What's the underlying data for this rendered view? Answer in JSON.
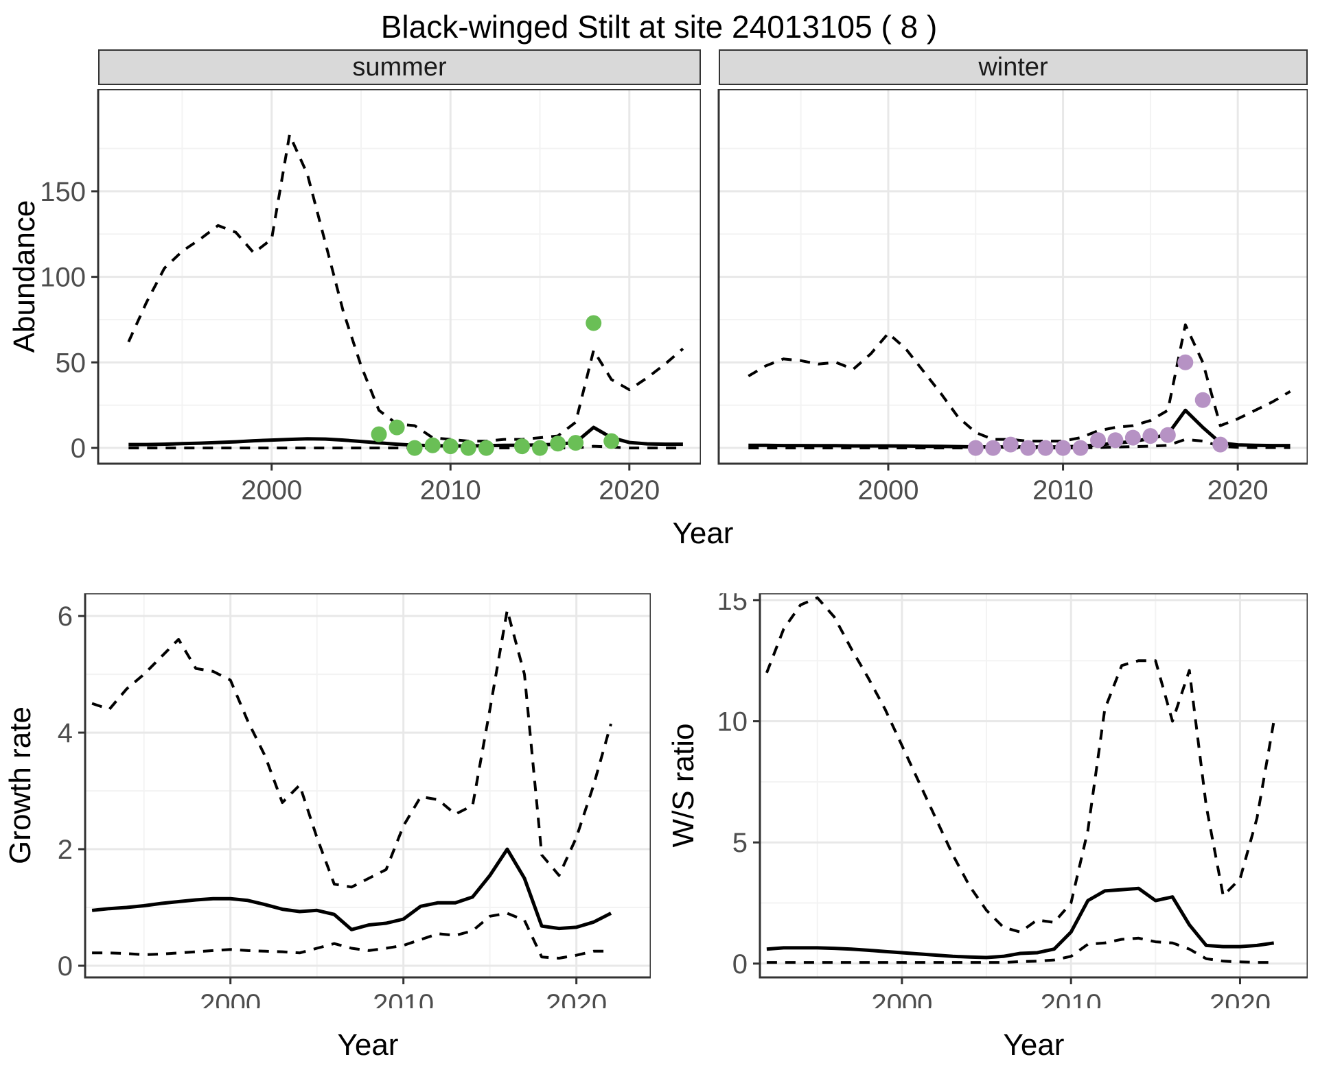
{
  "title": "Black-winged Stilt at site 24013105 ( 8 )",
  "colors": {
    "line": "#000000",
    "grid_major": "#e8e8e8",
    "grid_minor": "#f3f3f3",
    "panel_border": "#333333",
    "strip_bg": "#d9d9d9",
    "axis_text": "#4d4d4d",
    "summer_points": "#6abf56",
    "winter_points": "#b692c4"
  },
  "labels": {
    "x": "Year",
    "y_abundance": "Abundance",
    "y_growth": "Growth rate",
    "y_ws": "W/S ratio"
  },
  "facets": [
    {
      "label": "summer"
    },
    {
      "label": "winter"
    }
  ],
  "chart_data": [
    {
      "id": "abundance-summer",
      "type": "line",
      "facet": "summer",
      "xlabel": "Year",
      "ylabel": "Abundance",
      "xlim": [
        1990.3,
        2024.0
      ],
      "ylim": [
        -9.2,
        209.7
      ],
      "xticks": [
        2000,
        2010,
        2020
      ],
      "yticks": [
        0,
        50,
        100,
        150
      ],
      "xticks_minor": [
        1995,
        2005,
        2015
      ],
      "yticks_minor": [
        25,
        75,
        125,
        175
      ],
      "series": [
        {
          "name": "upper-ci",
          "style": "dashed",
          "x": [
            1992,
            1993,
            1994,
            1995,
            1996,
            1997,
            1998,
            1999,
            2000,
            2001,
            2002,
            2003,
            2004,
            2005,
            2006,
            2007,
            2008,
            2009,
            2010,
            2011,
            2012,
            2013,
            2014,
            2015,
            2016,
            2017,
            2018,
            2019,
            2020,
            2021,
            2022,
            2023
          ],
          "y": [
            62,
            85,
            105,
            115,
            122,
            130,
            126,
            114,
            122,
            183,
            160,
            120,
            80,
            48,
            22,
            14,
            13,
            6,
            5,
            4,
            4,
            5,
            5,
            6,
            7,
            15,
            57,
            40,
            34,
            41,
            49,
            58
          ]
        },
        {
          "name": "median",
          "style": "solid",
          "x": [
            1992,
            1993,
            1994,
            1995,
            1996,
            1997,
            1998,
            1999,
            2000,
            2001,
            2002,
            2003,
            2004,
            2005,
            2006,
            2007,
            2008,
            2009,
            2010,
            2011,
            2012,
            2013,
            2014,
            2015,
            2016,
            2017,
            2018,
            2019,
            2020,
            2021,
            2022,
            2023
          ],
          "y": [
            2,
            2,
            2.2,
            2.5,
            2.8,
            3.2,
            3.6,
            4.2,
            4.6,
            5,
            5.3,
            5.2,
            4.6,
            3.8,
            3,
            2.2,
            1.6,
            1.3,
            1.2,
            1.2,
            1.3,
            1.5,
            1.6,
            1.8,
            2.2,
            3.2,
            12,
            6,
            3.2,
            2.4,
            2.2,
            2.2
          ]
        },
        {
          "name": "lower-ci",
          "style": "dashed",
          "x": [
            1992,
            1993,
            1994,
            1995,
            1996,
            1997,
            1998,
            1999,
            2000,
            2001,
            2002,
            2003,
            2004,
            2005,
            2006,
            2007,
            2008,
            2009,
            2010,
            2011,
            2012,
            2013,
            2014,
            2015,
            2016,
            2017,
            2018,
            2019,
            2020,
            2021,
            2022,
            2023
          ],
          "y": [
            0,
            0,
            0,
            0,
            0,
            0,
            0,
            0,
            0,
            0,
            0,
            0,
            0,
            0,
            0,
            0,
            0,
            0,
            0,
            0,
            0,
            0,
            0,
            0,
            0,
            0,
            1,
            0.5,
            0,
            0,
            0,
            0
          ]
        }
      ],
      "points": {
        "name": "observed",
        "color_key": "summer_points",
        "x": [
          2006,
          2007,
          2008,
          2009,
          2010,
          2011,
          2012,
          2014,
          2015,
          2016,
          2017,
          2018,
          2019
        ],
        "y": [
          8,
          12,
          0,
          1.5,
          1,
          0,
          0,
          1,
          0,
          2.5,
          3,
          73,
          4
        ]
      }
    },
    {
      "id": "abundance-winter",
      "type": "line",
      "facet": "winter",
      "xlabel": "Year",
      "ylabel": "Abundance",
      "xlim": [
        1990.3,
        2024.0
      ],
      "ylim": [
        -9.2,
        209.7
      ],
      "xticks": [
        2000,
        2010,
        2020
      ],
      "yticks": [
        0,
        50,
        100,
        150
      ],
      "xticks_minor": [
        1995,
        2005,
        2015
      ],
      "yticks_minor": [
        25,
        75,
        125,
        175
      ],
      "series": [
        {
          "name": "upper-ci",
          "style": "dashed",
          "x": [
            1992,
            1993,
            1994,
            1995,
            1996,
            1997,
            1998,
            1999,
            2000,
            2001,
            2002,
            2003,
            2004,
            2005,
            2006,
            2007,
            2008,
            2009,
            2010,
            2011,
            2012,
            2013,
            2014,
            2015,
            2016,
            2017,
            2018,
            2019,
            2020,
            2021,
            2022,
            2023
          ],
          "y": [
            42,
            48,
            52,
            51,
            49,
            50,
            46,
            55,
            67,
            58,
            45,
            32,
            18,
            9,
            5,
            5,
            4,
            4,
            4,
            6,
            10,
            12,
            13,
            16,
            22,
            72,
            50,
            13,
            17,
            22,
            27,
            33
          ]
        },
        {
          "name": "median",
          "style": "solid",
          "x": [
            1992,
            1993,
            1994,
            1995,
            1996,
            1997,
            1998,
            1999,
            2000,
            2001,
            2002,
            2003,
            2004,
            2005,
            2006,
            2007,
            2008,
            2009,
            2010,
            2011,
            2012,
            2013,
            2014,
            2015,
            2016,
            2017,
            2018,
            2019,
            2020,
            2021,
            2022,
            2023
          ],
          "y": [
            1.5,
            1.5,
            1.4,
            1.4,
            1.3,
            1.3,
            1.2,
            1.2,
            1.2,
            1.1,
            1,
            0.9,
            0.8,
            0.6,
            0.6,
            0.6,
            0.6,
            0.6,
            0.6,
            1,
            1.8,
            2.8,
            3.8,
            5.5,
            8,
            22,
            12,
            3,
            1.8,
            1.5,
            1.4,
            1.4
          ]
        },
        {
          "name": "lower-ci",
          "style": "dashed",
          "x": [
            1992,
            1993,
            1994,
            1995,
            1996,
            1997,
            1998,
            1999,
            2000,
            2001,
            2002,
            2003,
            2004,
            2005,
            2006,
            2007,
            2008,
            2009,
            2010,
            2011,
            2012,
            2013,
            2014,
            2015,
            2016,
            2017,
            2018,
            2019,
            2020,
            2021,
            2022,
            2023
          ],
          "y": [
            0,
            0,
            0,
            0,
            0,
            0,
            0,
            0,
            0,
            0,
            0,
            0,
            0,
            0,
            0,
            0,
            0,
            0,
            0,
            0,
            0.2,
            0.5,
            0.8,
            1,
            1.5,
            5,
            4,
            1,
            0.3,
            0.2,
            0.2,
            0.2
          ]
        }
      ],
      "points": {
        "name": "observed",
        "color_key": "winter_points",
        "x": [
          2005,
          2006,
          2007,
          2008,
          2009,
          2010,
          2011,
          2012,
          2013,
          2014,
          2015,
          2016,
          2017,
          2018,
          2019
        ],
        "y": [
          0,
          0,
          2,
          0,
          0,
          0,
          0,
          4.5,
          4.5,
          6,
          7,
          7.5,
          50,
          28,
          2
        ]
      }
    },
    {
      "id": "growth-rate",
      "type": "line",
      "title": "",
      "xlabel": "Year",
      "ylabel": "Growth rate",
      "xlim": [
        1991.6,
        2024.3
      ],
      "ylim": [
        -0.2,
        6.39
      ],
      "xticks": [
        2000,
        2010,
        2020
      ],
      "yticks": [
        0,
        2,
        4,
        6
      ],
      "xticks_minor": [
        1995,
        2005,
        2015
      ],
      "yticks_minor": [
        1,
        3,
        5
      ],
      "series": [
        {
          "name": "upper-ci",
          "style": "dashed",
          "x": [
            1992,
            1993,
            1994,
            1995,
            1996,
            1997,
            1998,
            1999,
            2000,
            2001,
            2002,
            2003,
            2004,
            2005,
            2006,
            2007,
            2008,
            2009,
            2010,
            2011,
            2012,
            2013,
            2014,
            2015,
            2016,
            2017,
            2018,
            2019,
            2020,
            2021,
            2022
          ],
          "y": [
            4.5,
            4.4,
            4.75,
            5.0,
            5.3,
            5.6,
            5.1,
            5.05,
            4.9,
            4.2,
            3.6,
            2.8,
            3.1,
            2.2,
            1.4,
            1.35,
            1.5,
            1.65,
            2.4,
            2.9,
            2.85,
            2.6,
            2.75,
            4.4,
            6.1,
            5.0,
            1.9,
            1.55,
            2.2,
            3.1,
            4.15
          ]
        },
        {
          "name": "median",
          "style": "solid",
          "x": [
            1992,
            1993,
            1994,
            1995,
            1996,
            1997,
            1998,
            1999,
            2000,
            2001,
            2002,
            2003,
            2004,
            2005,
            2006,
            2007,
            2008,
            2009,
            2010,
            2011,
            2012,
            2013,
            2014,
            2015,
            2016,
            2017,
            2018,
            2019,
            2020,
            2021,
            2022
          ],
          "y": [
            0.95,
            0.98,
            1.0,
            1.03,
            1.07,
            1.1,
            1.13,
            1.15,
            1.15,
            1.12,
            1.05,
            0.97,
            0.93,
            0.95,
            0.88,
            0.62,
            0.7,
            0.73,
            0.8,
            1.02,
            1.08,
            1.08,
            1.18,
            1.55,
            2.0,
            1.5,
            0.68,
            0.64,
            0.66,
            0.75,
            0.9
          ]
        },
        {
          "name": "lower-ci",
          "style": "dashed",
          "x": [
            1992,
            1993,
            1994,
            1995,
            1996,
            1997,
            1998,
            1999,
            2000,
            2001,
            2002,
            2003,
            2004,
            2005,
            2006,
            2007,
            2008,
            2009,
            2010,
            2011,
            2012,
            2013,
            2014,
            2015,
            2016,
            2017,
            2018,
            2019,
            2020,
            2021,
            2022
          ],
          "y": [
            0.22,
            0.22,
            0.21,
            0.19,
            0.2,
            0.22,
            0.24,
            0.26,
            0.28,
            0.26,
            0.25,
            0.24,
            0.22,
            0.3,
            0.38,
            0.3,
            0.26,
            0.3,
            0.35,
            0.45,
            0.55,
            0.52,
            0.6,
            0.85,
            0.9,
            0.78,
            0.15,
            0.13,
            0.18,
            0.25,
            0.25
          ]
        }
      ]
    },
    {
      "id": "ws-ratio",
      "type": "line",
      "title": "",
      "xlabel": "Year",
      "ylabel": "W/S ratio",
      "xlim": [
        1991.6,
        2024.0
      ],
      "ylim": [
        -0.57,
        15.28
      ],
      "xticks": [
        2000,
        2010,
        2020
      ],
      "yticks": [
        0,
        5,
        10,
        15
      ],
      "xticks_minor": [
        1995,
        2005,
        2015
      ],
      "yticks_minor": [
        2.5,
        7.5,
        12.5
      ],
      "series": [
        {
          "name": "upper-ci",
          "style": "dashed",
          "x": [
            1992,
            1993,
            1994,
            1995,
            1996,
            1997,
            1998,
            1999,
            2000,
            2001,
            2002,
            2003,
            2004,
            2005,
            2006,
            2007,
            2008,
            2009,
            2010,
            2011,
            2012,
            2013,
            2014,
            2015,
            2016,
            2017,
            2018,
            2019,
            2020,
            2021,
            2022
          ],
          "y": [
            12.0,
            13.8,
            14.8,
            15.1,
            14.3,
            13.0,
            11.8,
            10.5,
            9.0,
            7.5,
            6.0,
            4.5,
            3.2,
            2.2,
            1.5,
            1.3,
            1.8,
            1.7,
            2.5,
            5.5,
            10.5,
            12.3,
            12.5,
            12.5,
            10.0,
            12.1,
            6.5,
            2.8,
            3.5,
            6.0,
            10.0
          ]
        },
        {
          "name": "median",
          "style": "solid",
          "x": [
            1992,
            1993,
            1994,
            1995,
            1996,
            1997,
            1998,
            1999,
            2000,
            2001,
            2002,
            2003,
            2004,
            2005,
            2006,
            2007,
            2008,
            2009,
            2010,
            2011,
            2012,
            2013,
            2014,
            2015,
            2016,
            2017,
            2018,
            2019,
            2020,
            2021,
            2022
          ],
          "y": [
            0.6,
            0.65,
            0.65,
            0.65,
            0.63,
            0.6,
            0.55,
            0.5,
            0.45,
            0.4,
            0.35,
            0.3,
            0.27,
            0.25,
            0.3,
            0.42,
            0.45,
            0.6,
            1.3,
            2.6,
            3.0,
            3.05,
            3.1,
            2.6,
            2.75,
            1.6,
            0.75,
            0.7,
            0.7,
            0.75,
            0.85
          ]
        },
        {
          "name": "lower-ci",
          "style": "dashed",
          "x": [
            1992,
            1993,
            1994,
            1995,
            1996,
            1997,
            1998,
            1999,
            2000,
            2001,
            2002,
            2003,
            2004,
            2005,
            2006,
            2007,
            2008,
            2009,
            2010,
            2011,
            2012,
            2013,
            2014,
            2015,
            2016,
            2017,
            2018,
            2019,
            2020,
            2021,
            2022
          ],
          "y": [
            0.05,
            0.05,
            0.05,
            0.05,
            0.05,
            0.05,
            0.05,
            0.05,
            0.05,
            0.05,
            0.05,
            0.05,
            0.05,
            0.05,
            0.05,
            0.08,
            0.1,
            0.15,
            0.3,
            0.8,
            0.85,
            1.0,
            1.05,
            0.9,
            0.85,
            0.6,
            0.2,
            0.1,
            0.07,
            0.05,
            0.05
          ]
        }
      ]
    }
  ]
}
